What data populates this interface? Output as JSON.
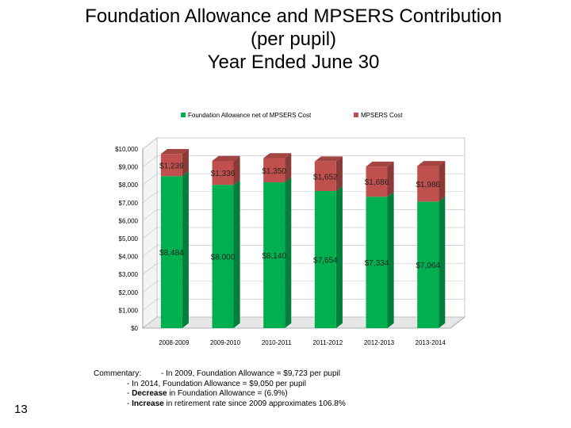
{
  "slide": {
    "title_line1": "Foundation Allowance and MPSERS Contribution",
    "title_line2": "(per pupil)",
    "title_line3": "Year Ended June 30",
    "page_number": "13"
  },
  "chart_data": {
    "type": "bar",
    "stacked": true,
    "three_d": true,
    "categories": [
      "2008-2009",
      "2009-2010",
      "2010-2011",
      "2011-2012",
      "2012-2013",
      "2013-2014"
    ],
    "series": [
      {
        "name": "Foundation Allowance net of MPSERS Cost",
        "color": "#00b050",
        "values": [
          8484,
          8000,
          8140,
          7654,
          7334,
          7064
        ],
        "labels": [
          "$8,484",
          "$8,000",
          "$8,140",
          "$7,654",
          "$7,334",
          "$7,064"
        ]
      },
      {
        "name": "MPSERS Cost",
        "color": "#c0504d",
        "values": [
          1239,
          1336,
          1350,
          1652,
          1686,
          1986
        ],
        "labels": [
          "$1,239",
          "$1,336",
          "$1,350",
          "$1,652",
          "$1,686",
          "$1,986"
        ]
      }
    ],
    "ylim": [
      0,
      10000
    ],
    "yticks": [
      0,
      1000,
      2000,
      3000,
      4000,
      5000,
      6000,
      7000,
      8000,
      9000,
      10000
    ],
    "ytick_labels": [
      "$0",
      "$1,000",
      "$2,000",
      "$3,000",
      "$4,000",
      "$5,000",
      "$6,000",
      "$7,000",
      "$8,000",
      "$9,000",
      "$10,000"
    ],
    "legend_position": "top",
    "grid": true
  },
  "commentary": {
    "lead": "Commentary:",
    "line1": "- In 2009, Foundation Allowance = $9,723 per pupil",
    "line2": "- In 2014, Foundation Allowance = $9,050 per pupil",
    "line3_bold": "Decrease",
    "line3_rest": " in Foundation Allowance =  (6.9%)",
    "line4_bold": "Increase",
    "line4_rest": " in retirement rate since 2009 approximates 106.8%"
  }
}
